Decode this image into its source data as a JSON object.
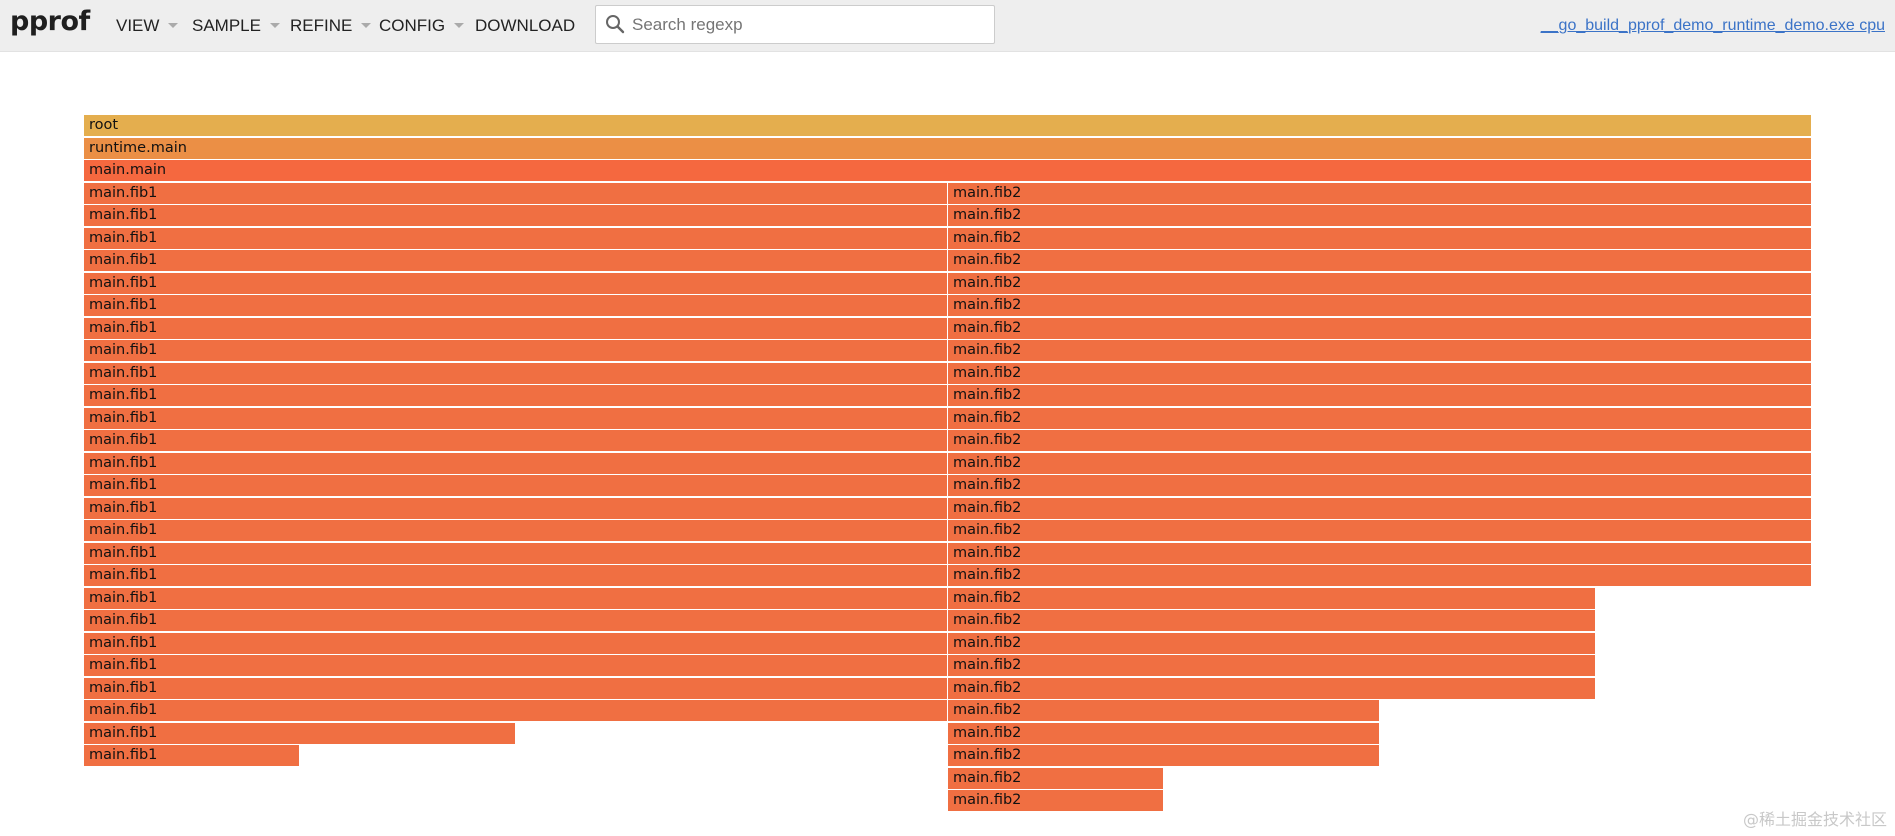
{
  "app": {
    "brand": "pprof",
    "profile_link": "__go_build_pprof_demo_runtime_demo.exe cpu"
  },
  "menu": [
    {
      "label": "VIEW",
      "has_dropdown": true
    },
    {
      "label": "SAMPLE",
      "has_dropdown": true
    },
    {
      "label": "REFINE",
      "has_dropdown": true
    },
    {
      "label": "CONFIG",
      "has_dropdown": true
    },
    {
      "label": "DOWNLOAD",
      "has_dropdown": false
    }
  ],
  "search": {
    "placeholder": "Search regexp",
    "value": ""
  },
  "flame": {
    "colors": {
      "root": "#e4ae4e",
      "runtime": "#eb8f45",
      "main": "#f5683f",
      "fib": "#f06f42"
    },
    "frames": [
      {
        "name": "root",
        "depth": 0,
        "start": 0,
        "width": 1,
        "color": "root"
      },
      {
        "name": "runtime.main",
        "depth": 1,
        "start": 0,
        "width": 1,
        "color": "runtime"
      },
      {
        "name": "main.main",
        "depth": 2,
        "start": 0,
        "width": 1,
        "color": "main"
      },
      {
        "name": "main.fib1",
        "depth": 3,
        "start": 0,
        "width": 0.5,
        "color": "fib"
      },
      {
        "name": "main.fib1",
        "depth": 4,
        "start": 0,
        "width": 0.5,
        "color": "fib"
      },
      {
        "name": "main.fib1",
        "depth": 5,
        "start": 0,
        "width": 0.5,
        "color": "fib"
      },
      {
        "name": "main.fib1",
        "depth": 6,
        "start": 0,
        "width": 0.5,
        "color": "fib"
      },
      {
        "name": "main.fib1",
        "depth": 7,
        "start": 0,
        "width": 0.5,
        "color": "fib"
      },
      {
        "name": "main.fib1",
        "depth": 8,
        "start": 0,
        "width": 0.5,
        "color": "fib"
      },
      {
        "name": "main.fib1",
        "depth": 9,
        "start": 0,
        "width": 0.5,
        "color": "fib"
      },
      {
        "name": "main.fib1",
        "depth": 10,
        "start": 0,
        "width": 0.5,
        "color": "fib"
      },
      {
        "name": "main.fib1",
        "depth": 11,
        "start": 0,
        "width": 0.5,
        "color": "fib"
      },
      {
        "name": "main.fib1",
        "depth": 12,
        "start": 0,
        "width": 0.5,
        "color": "fib"
      },
      {
        "name": "main.fib1",
        "depth": 13,
        "start": 0,
        "width": 0.5,
        "color": "fib"
      },
      {
        "name": "main.fib1",
        "depth": 14,
        "start": 0,
        "width": 0.5,
        "color": "fib"
      },
      {
        "name": "main.fib1",
        "depth": 15,
        "start": 0,
        "width": 0.5,
        "color": "fib"
      },
      {
        "name": "main.fib1",
        "depth": 16,
        "start": 0,
        "width": 0.5,
        "color": "fib"
      },
      {
        "name": "main.fib1",
        "depth": 17,
        "start": 0,
        "width": 0.5,
        "color": "fib"
      },
      {
        "name": "main.fib1",
        "depth": 18,
        "start": 0,
        "width": 0.5,
        "color": "fib"
      },
      {
        "name": "main.fib1",
        "depth": 19,
        "start": 0,
        "width": 0.5,
        "color": "fib"
      },
      {
        "name": "main.fib1",
        "depth": 20,
        "start": 0,
        "width": 0.5,
        "color": "fib"
      },
      {
        "name": "main.fib1",
        "depth": 21,
        "start": 0,
        "width": 0.5,
        "color": "fib"
      },
      {
        "name": "main.fib1",
        "depth": 22,
        "start": 0,
        "width": 0.5,
        "color": "fib"
      },
      {
        "name": "main.fib1",
        "depth": 23,
        "start": 0,
        "width": 0.5,
        "color": "fib"
      },
      {
        "name": "main.fib1",
        "depth": 24,
        "start": 0,
        "width": 0.5,
        "color": "fib"
      },
      {
        "name": "main.fib1",
        "depth": 25,
        "start": 0,
        "width": 0.5,
        "color": "fib"
      },
      {
        "name": "main.fib1",
        "depth": 26,
        "start": 0,
        "width": 0.5,
        "color": "fib"
      },
      {
        "name": "main.fib1",
        "depth": 27,
        "start": 0,
        "width": 0.25,
        "color": "fib"
      },
      {
        "name": "main.fib1",
        "depth": 28,
        "start": 0,
        "width": 0.125,
        "color": "fib"
      },
      {
        "name": "main.fib2",
        "depth": 3,
        "start": 0.5,
        "width": 0.5,
        "color": "fib"
      },
      {
        "name": "main.fib2",
        "depth": 4,
        "start": 0.5,
        "width": 0.5,
        "color": "fib"
      },
      {
        "name": "main.fib2",
        "depth": 5,
        "start": 0.5,
        "width": 0.5,
        "color": "fib"
      },
      {
        "name": "main.fib2",
        "depth": 6,
        "start": 0.5,
        "width": 0.5,
        "color": "fib"
      },
      {
        "name": "main.fib2",
        "depth": 7,
        "start": 0.5,
        "width": 0.5,
        "color": "fib"
      },
      {
        "name": "main.fib2",
        "depth": 8,
        "start": 0.5,
        "width": 0.5,
        "color": "fib"
      },
      {
        "name": "main.fib2",
        "depth": 9,
        "start": 0.5,
        "width": 0.5,
        "color": "fib"
      },
      {
        "name": "main.fib2",
        "depth": 10,
        "start": 0.5,
        "width": 0.5,
        "color": "fib"
      },
      {
        "name": "main.fib2",
        "depth": 11,
        "start": 0.5,
        "width": 0.5,
        "color": "fib"
      },
      {
        "name": "main.fib2",
        "depth": 12,
        "start": 0.5,
        "width": 0.5,
        "color": "fib"
      },
      {
        "name": "main.fib2",
        "depth": 13,
        "start": 0.5,
        "width": 0.5,
        "color": "fib"
      },
      {
        "name": "main.fib2",
        "depth": 14,
        "start": 0.5,
        "width": 0.5,
        "color": "fib"
      },
      {
        "name": "main.fib2",
        "depth": 15,
        "start": 0.5,
        "width": 0.5,
        "color": "fib"
      },
      {
        "name": "main.fib2",
        "depth": 16,
        "start": 0.5,
        "width": 0.5,
        "color": "fib"
      },
      {
        "name": "main.fib2",
        "depth": 17,
        "start": 0.5,
        "width": 0.5,
        "color": "fib"
      },
      {
        "name": "main.fib2",
        "depth": 18,
        "start": 0.5,
        "width": 0.5,
        "color": "fib"
      },
      {
        "name": "main.fib2",
        "depth": 19,
        "start": 0.5,
        "width": 0.5,
        "color": "fib"
      },
      {
        "name": "main.fib2",
        "depth": 20,
        "start": 0.5,
        "width": 0.5,
        "color": "fib"
      },
      {
        "name": "main.fib2",
        "depth": 21,
        "start": 0.5,
        "width": 0.375,
        "color": "fib"
      },
      {
        "name": "main.fib2",
        "depth": 22,
        "start": 0.5,
        "width": 0.375,
        "color": "fib"
      },
      {
        "name": "main.fib2",
        "depth": 23,
        "start": 0.5,
        "width": 0.375,
        "color": "fib"
      },
      {
        "name": "main.fib2",
        "depth": 24,
        "start": 0.5,
        "width": 0.375,
        "color": "fib"
      },
      {
        "name": "main.fib2",
        "depth": 25,
        "start": 0.5,
        "width": 0.375,
        "color": "fib"
      },
      {
        "name": "main.fib2",
        "depth": 26,
        "start": 0.5,
        "width": 0.25,
        "color": "fib"
      },
      {
        "name": "main.fib2",
        "depth": 27,
        "start": 0.5,
        "width": 0.25,
        "color": "fib"
      },
      {
        "name": "main.fib2",
        "depth": 28,
        "start": 0.5,
        "width": 0.25,
        "color": "fib"
      },
      {
        "name": "main.fib2",
        "depth": 29,
        "start": 0.5,
        "width": 0.125,
        "color": "fib"
      },
      {
        "name": "main.fib2",
        "depth": 30,
        "start": 0.5,
        "width": 0.125,
        "color": "fib"
      }
    ]
  },
  "watermark": "@稀土掘金技术社区"
}
